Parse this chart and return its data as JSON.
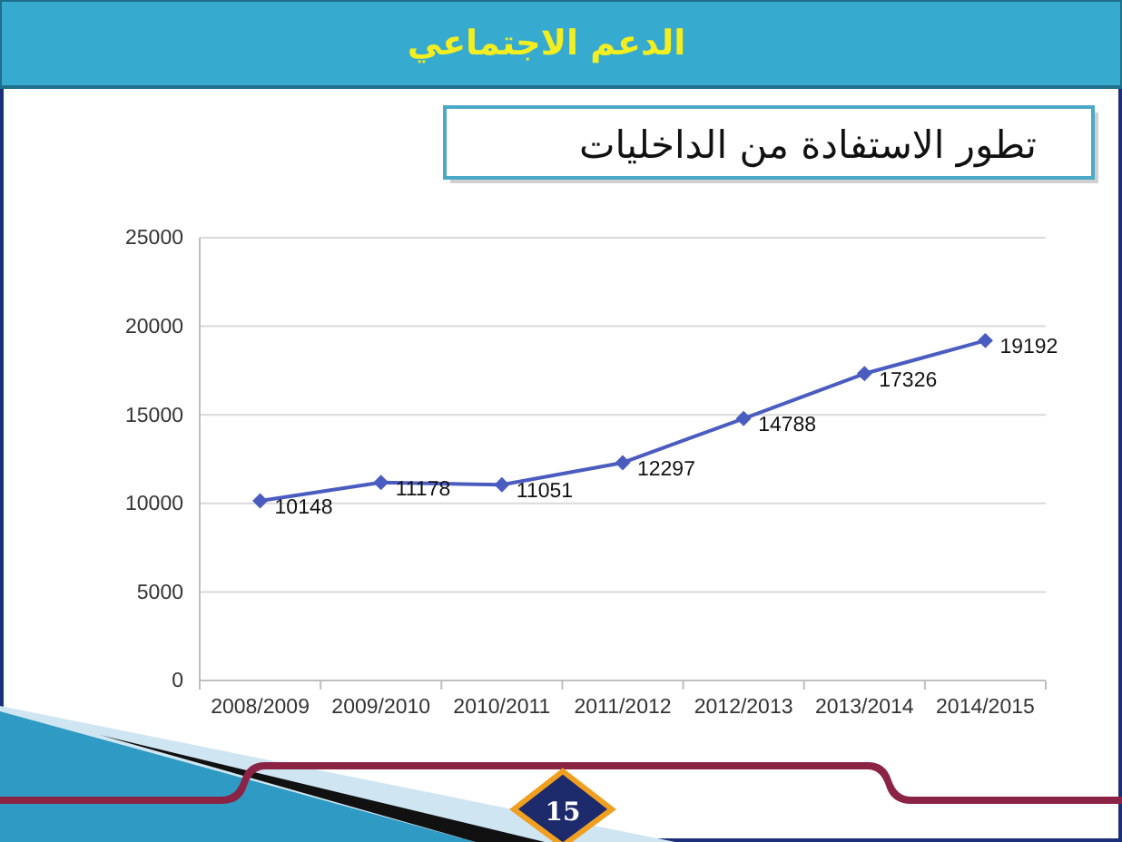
{
  "chart_data": {
    "type": "line",
    "title": "الدعم الاجتماعي",
    "subtitle": "تطور الاستفادة من الداخليات",
    "categories": [
      "2008/2009",
      "2009/2010",
      "2010/2011",
      "2011/2012",
      "2012/2013",
      "2013/2014",
      "2014/2015"
    ],
    "values": [
      10148,
      11178,
      11051,
      12297,
      14788,
      17326,
      19192
    ],
    "color": "#4a5cc0",
    "ylim": [
      0,
      25000
    ],
    "yticks": [
      0,
      5000,
      10000,
      15000,
      20000,
      25000
    ],
    "grid": "y",
    "marker": "diamond",
    "data_labels": true,
    "annotations": [
      "15"
    ]
  }
}
